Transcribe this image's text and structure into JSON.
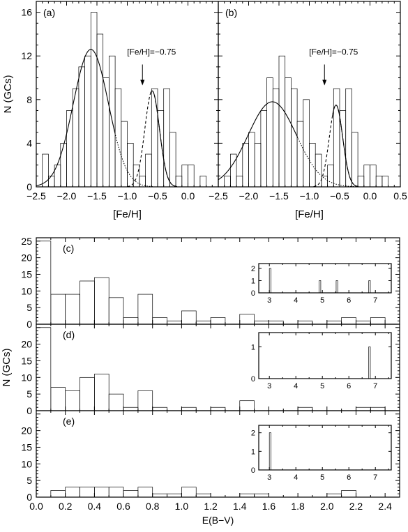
{
  "chart_data": [
    {
      "id": "a",
      "type": "bar",
      "panel_label": "(a)",
      "xlabel": "[Fe/H]",
      "ylabel": "N (GCs)",
      "xlim": [
        -2.5,
        0.5
      ],
      "ylim": [
        0,
        17
      ],
      "x_ticks": [
        -2.5,
        -2.0,
        -1.5,
        -1.0,
        -0.5,
        0.0
      ],
      "x_tick_labels": [
        "−2.5",
        "−2.0",
        "−1.5",
        "−1.0",
        "−0.5",
        "0.0"
      ],
      "y_ticks": [
        0,
        4,
        8,
        12,
        16
      ],
      "bin_start": -2.4,
      "bin_width": 0.1,
      "values": [
        3,
        1,
        2,
        4,
        7,
        9,
        11,
        12,
        16,
        14,
        10,
        12,
        9,
        6,
        4,
        2,
        1,
        3,
        9,
        7,
        9,
        5,
        1,
        2,
        2,
        0,
        1
      ],
      "annotation": {
        "text": "[Fe/H]=−0.75",
        "x": -0.75,
        "y": 9.3
      },
      "gaussians": [
        {
          "mean": -1.6,
          "sigma": 0.29,
          "amp": 12.6
        },
        {
          "mean": -0.59,
          "sigma": 0.12,
          "amp": 8.8
        }
      ]
    },
    {
      "id": "b",
      "type": "bar",
      "panel_label": "(b)",
      "xlabel": "[Fe/H]",
      "xlim": [
        -2.5,
        0.5
      ],
      "ylim": [
        0,
        17
      ],
      "x_ticks": [
        -2.5,
        -2.0,
        -1.5,
        -1.0,
        -0.5,
        0.0,
        0.5
      ],
      "x_tick_labels": [
        "−2.5",
        "−2.0",
        "−1.5",
        "−1.0",
        "−0.5",
        "0.0",
        "0.5"
      ],
      "y_ticks": [
        0,
        4,
        8,
        12,
        16
      ],
      "bin_start": -2.4,
      "bin_width": 0.1,
      "values": [
        1,
        3,
        1,
        4,
        5,
        4,
        7,
        10,
        9,
        12,
        10,
        9,
        6,
        8,
        4,
        3,
        1,
        2,
        9,
        7,
        9,
        5,
        1,
        2,
        2,
        1,
        1
      ],
      "annotation": {
        "text": "[Fe/H]=−0.75",
        "x": -0.75,
        "y": 9.3
      },
      "gaussians": [
        {
          "mean": -1.61,
          "sigma": 0.4,
          "amp": 7.8
        },
        {
          "mean": -0.56,
          "sigma": 0.11,
          "amp": 7.5
        }
      ]
    },
    {
      "id": "c",
      "type": "bar",
      "panel_label": "(c)",
      "xlim": [
        0.0,
        2.5
      ],
      "ylim": [
        0,
        26
      ],
      "x_ticks": [
        0.0,
        0.2,
        0.4,
        0.6,
        0.8,
        1.0,
        1.2,
        1.4,
        1.6,
        1.8,
        2.0,
        2.2,
        2.4
      ],
      "y_ticks": [
        0,
        5,
        10,
        15,
        20,
        25
      ],
      "bin_start": 0.0,
      "bin_width": 0.1,
      "values": [
        25,
        9,
        9,
        13,
        14,
        8,
        2,
        9,
        2,
        1,
        4,
        1,
        2,
        0,
        3,
        1,
        1,
        0,
        1,
        0,
        1,
        2,
        1,
        2
      ],
      "inset": {
        "xlim": [
          2.6,
          7.6
        ],
        "ylim": [
          0,
          2.4
        ],
        "x_ticks": [
          3,
          4,
          5,
          6,
          7
        ],
        "y_ticks": [
          0,
          1,
          2
        ],
        "bin_width": 0.06,
        "bars": [
          {
            "x": 3.0,
            "v": 2
          },
          {
            "x": 4.88,
            "v": 1
          },
          {
            "x": 5.52,
            "v": 1
          },
          {
            "x": 6.75,
            "v": 1
          }
        ]
      }
    },
    {
      "id": "d",
      "type": "bar",
      "panel_label": "(d)",
      "ylabel": "N (GCs)",
      "xlim": [
        0.0,
        2.5
      ],
      "ylim": [
        0,
        26
      ],
      "x_ticks": [
        0.0,
        0.2,
        0.4,
        0.6,
        0.8,
        1.0,
        1.2,
        1.4,
        1.6,
        1.8,
        2.0,
        2.2,
        2.4
      ],
      "y_ticks": [
        0,
        5,
        10,
        15,
        20
      ],
      "bin_start": 0.0,
      "bin_width": 0.1,
      "values": [
        25,
        7,
        6,
        10,
        11,
        5,
        1,
        6,
        1,
        0,
        1,
        0,
        1,
        0,
        3,
        0,
        0,
        0,
        1,
        0,
        0,
        0,
        1,
        1
      ],
      "inset": {
        "xlim": [
          2.6,
          7.6
        ],
        "ylim": [
          0,
          1.45
        ],
        "x_ticks": [
          3,
          4,
          5,
          6,
          7
        ],
        "y_ticks": [
          0,
          1
        ],
        "bin_width": 0.06,
        "bars": [
          {
            "x": 6.75,
            "v": 1
          }
        ]
      }
    },
    {
      "id": "e",
      "type": "bar",
      "panel_label": "(e)",
      "xlabel": "E(B−V)",
      "xlim": [
        0.0,
        2.5
      ],
      "ylim": [
        0,
        26
      ],
      "x_ticks": [
        0.0,
        0.2,
        0.4,
        0.6,
        0.8,
        1.0,
        1.2,
        1.4,
        1.6,
        1.8,
        2.0,
        2.2,
        2.4
      ],
      "x_tick_labels": [
        "0.0",
        "0.2",
        "0.4",
        "0.6",
        "0.8",
        "1.0",
        "1.2",
        "1.4",
        "1.6",
        "1.8",
        "2.0",
        "2.2",
        "2.4"
      ],
      "y_ticks": [
        0,
        5,
        10,
        15,
        20
      ],
      "bin_start": 0.0,
      "bin_width": 0.1,
      "values": [
        0,
        2,
        3,
        3,
        3,
        3,
        2,
        3,
        1,
        1,
        3,
        1,
        0,
        0,
        1,
        1,
        0,
        0,
        0,
        0,
        1,
        2,
        0,
        0
      ],
      "inset": {
        "xlim": [
          2.6,
          7.6
        ],
        "ylim": [
          0,
          2.4
        ],
        "x_ticks": [
          3,
          4,
          5,
          6,
          7
        ],
        "y_ticks": [
          0,
          1,
          2
        ],
        "bin_width": 0.06,
        "bars": [
          {
            "x": 3.0,
            "v": 2
          }
        ]
      }
    }
  ]
}
